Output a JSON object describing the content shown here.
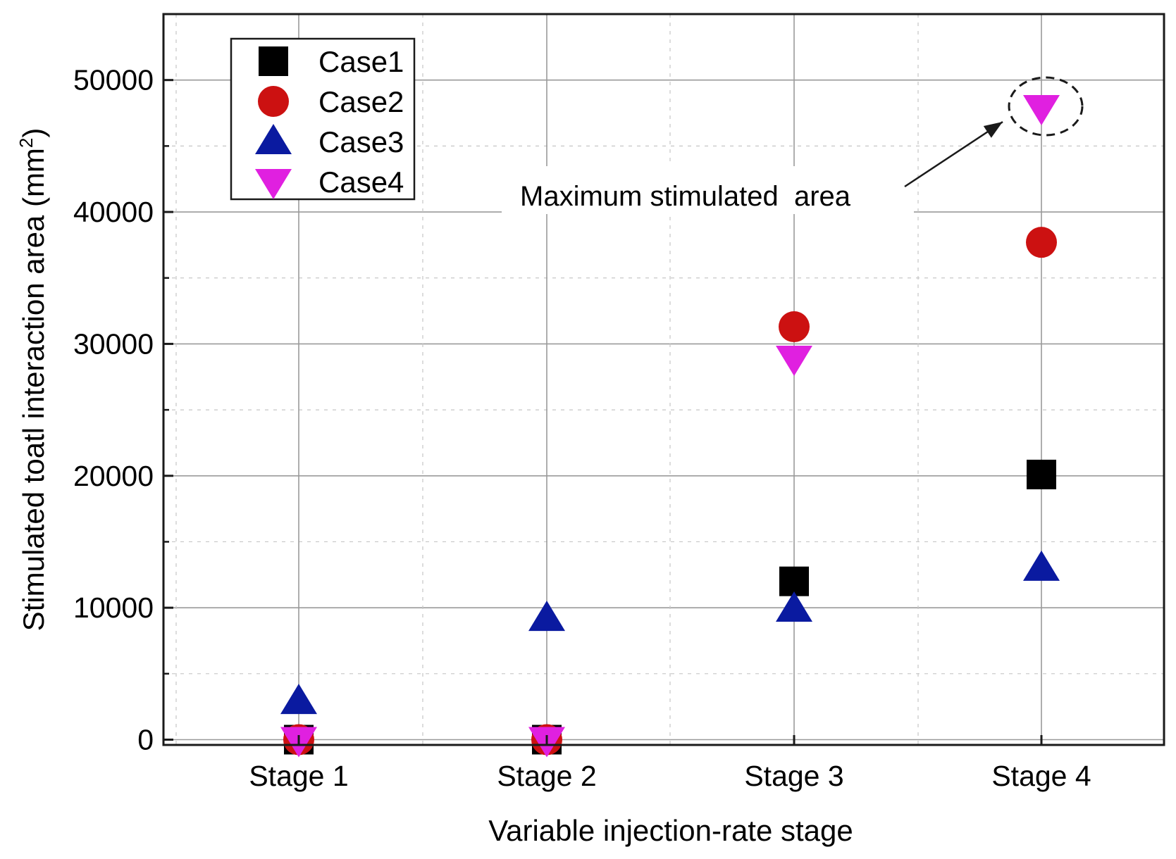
{
  "chart_data": {
    "type": "scatter",
    "title": "",
    "xlabel": "Variable injection-rate stage",
    "ylabel": "Stimulated toatl interaction area (mm",
    "ylabel_sup": "2",
    "ylabel_close": ")",
    "categories": [
      "Stage 1",
      "Stage 2",
      "Stage 3",
      "Stage 4"
    ],
    "ylim": [
      -400,
      55000
    ],
    "yticks": [
      0,
      10000,
      20000,
      30000,
      40000,
      50000
    ],
    "grid": true,
    "legend_position": "top-left",
    "series": [
      {
        "name": "Case1",
        "marker": "square",
        "color": "#000000",
        "values": [
          0,
          0,
          12000,
          20100
        ]
      },
      {
        "name": "Case2",
        "marker": "circle",
        "color": "#cc1111",
        "values": [
          0,
          0,
          31300,
          37700
        ]
      },
      {
        "name": "Case3",
        "marker": "triangle-up",
        "color": "#0a1aa0",
        "values": [
          2900,
          9200,
          9900,
          13000
        ]
      },
      {
        "name": "Case4",
        "marker": "triangle-down",
        "color": "#e020e0",
        "values": [
          0,
          0,
          28900,
          47900
        ]
      }
    ],
    "annotations": [
      {
        "text": "Maximum stimulated  area",
        "target_category": "Stage 4",
        "target_value": 47900
      }
    ]
  }
}
